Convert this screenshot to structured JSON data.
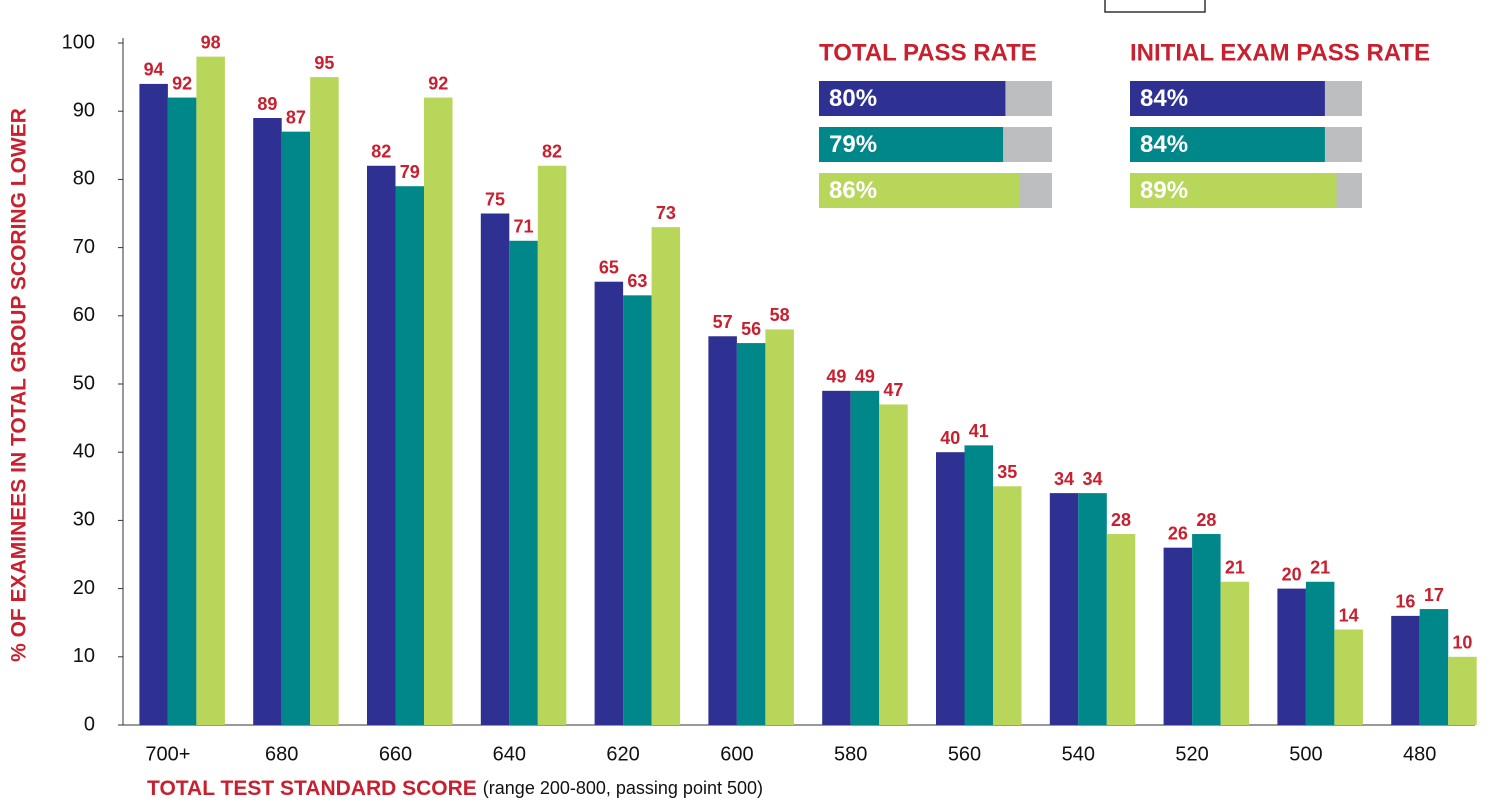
{
  "chart_data": [
    {
      "type": "bar",
      "y_label": "% OF EXAMINEES IN TOTAL GROUP SCORING LOWER",
      "x_label": "TOTAL TEST STANDARD SCORE",
      "x_label_note": "(range 200-800, passing point 500)",
      "categories": [
        "700+",
        "680",
        "660",
        "640",
        "620",
        "600",
        "580",
        "560",
        "540",
        "520",
        "500",
        "480"
      ],
      "series": [
        {
          "color": "#2e3192",
          "values": [
            94,
            89,
            82,
            75,
            65,
            57,
            49,
            40,
            34,
            26,
            20,
            16
          ]
        },
        {
          "color": "#00878a",
          "values": [
            92,
            87,
            79,
            71,
            63,
            56,
            49,
            41,
            34,
            28,
            21,
            17
          ]
        },
        {
          "color": "#b8d65a",
          "values": [
            98,
            95,
            92,
            82,
            73,
            58,
            47,
            35,
            28,
            21,
            14,
            10
          ]
        }
      ],
      "ylim": [
        0,
        100
      ],
      "yticks": [
        0,
        10,
        20,
        30,
        40,
        50,
        60,
        70,
        80,
        90,
        100
      ],
      "grid": false
    },
    {
      "type": "hbar",
      "title": "TOTAL PASS RATE",
      "values": [
        80,
        79,
        86
      ],
      "value_labels": [
        "80%",
        "79%",
        "86%"
      ],
      "colors": [
        "#2e3192",
        "#00878a",
        "#b8d65a"
      ],
      "track_color": "#bcbec0",
      "xlim": [
        0,
        100
      ]
    },
    {
      "type": "hbar",
      "title": "INITIAL EXAM PASS RATE",
      "values": [
        84,
        84,
        89
      ],
      "value_labels": [
        "84%",
        "84%",
        "89%"
      ],
      "colors": [
        "#2e3192",
        "#00878a",
        "#b8d65a"
      ],
      "track_color": "#bcbec0",
      "xlim": [
        0,
        100
      ]
    }
  ]
}
